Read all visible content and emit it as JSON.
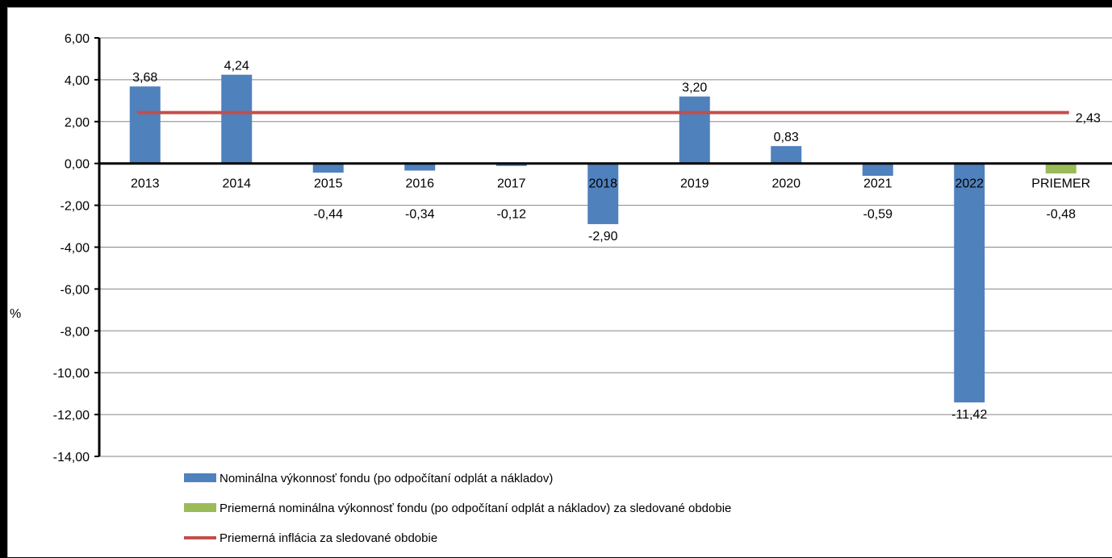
{
  "chart_data": {
    "type": "bar",
    "categories": [
      "2013",
      "2014",
      "2015",
      "2016",
      "2017",
      "2018",
      "2019",
      "2020",
      "2021",
      "2022",
      "PRIEMER"
    ],
    "series": [
      {
        "name": "Nominálna výkonnosť fondu (po odpočítaní odplát a nákladov)",
        "type": "bar",
        "color": "#4f81bd",
        "values": [
          3.68,
          4.24,
          -0.44,
          -0.34,
          -0.12,
          -2.9,
          3.2,
          0.83,
          -0.59,
          -11.42,
          null
        ],
        "labels": [
          "3,68",
          "4,24",
          "-0,44",
          "-0,34",
          "-0,12",
          "-2,90",
          "3,20",
          "0,83",
          "-0,59",
          "-11,42",
          ""
        ]
      },
      {
        "name": "Priemerná nominálna výkonnosť fondu (po odpočítaní odplát a nákladov) za sledované obdobie",
        "type": "bar",
        "color": "#9bbb59",
        "values": [
          null,
          null,
          null,
          null,
          null,
          null,
          null,
          null,
          null,
          null,
          -0.48
        ],
        "labels": [
          "",
          "",
          "",
          "",
          "",
          "",
          "",
          "",
          "",
          "",
          "-0,48"
        ]
      },
      {
        "name": "Priemerná inflácia za sledované obdobie",
        "type": "line",
        "color": "#c0504d",
        "value": 2.43,
        "label": "2,43"
      }
    ],
    "yaxis": {
      "label": "%",
      "ylim": [
        -14,
        6
      ],
      "ticks": [
        6,
        4,
        2,
        0,
        -2,
        -4,
        -6,
        -8,
        -10,
        -12,
        -14
      ],
      "tick_labels": [
        "6,00",
        "4,00",
        "2,00",
        "0,00",
        "-2,00",
        "-4,00",
        "-6,00",
        "-8,00",
        "-10,00",
        "-12,00",
        "-14,00"
      ]
    },
    "grid": true,
    "legend": "bottom-left"
  }
}
